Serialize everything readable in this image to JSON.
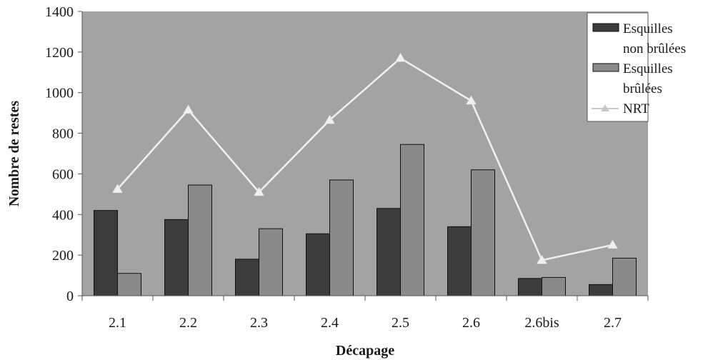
{
  "chart_data": {
    "type": "bar",
    "title": "",
    "xlabel": "Décapage",
    "ylabel": "Nombre de restes",
    "categories": [
      "2.1",
      "2.2",
      "2.3",
      "2.4",
      "2.5",
      "2.6",
      "2.6bis",
      "2.7"
    ],
    "ylim": [
      0,
      1400
    ],
    "yticks": [
      0,
      200,
      400,
      600,
      800,
      1000,
      1200,
      1400
    ],
    "grid": false,
    "legend_position": "top-right",
    "series": [
      {
        "name": "Esquilles non brûlées",
        "kind": "bar",
        "color": "#3c3c3c",
        "values": [
          420,
          375,
          180,
          305,
          430,
          340,
          85,
          55
        ]
      },
      {
        "name": "Esquilles brûlées",
        "kind": "bar",
        "color": "#8a8a8a",
        "values": [
          110,
          545,
          330,
          570,
          745,
          620,
          90,
          185
        ]
      },
      {
        "name": "NRT",
        "kind": "line",
        "marker": "triangle",
        "color": "#f0f0f0",
        "values": [
          525,
          915,
          510,
          865,
          1170,
          960,
          175,
          250
        ]
      }
    ],
    "legend": {
      "items": [
        {
          "lines": [
            "Esquilles",
            "non brûlées"
          ],
          "series": 0
        },
        {
          "lines": [
            "Esquilles",
            "brûlées"
          ],
          "series": 1
        },
        {
          "lines": [
            "NRT"
          ],
          "series": 2
        }
      ]
    },
    "plot_background": "#a3a3a3"
  }
}
